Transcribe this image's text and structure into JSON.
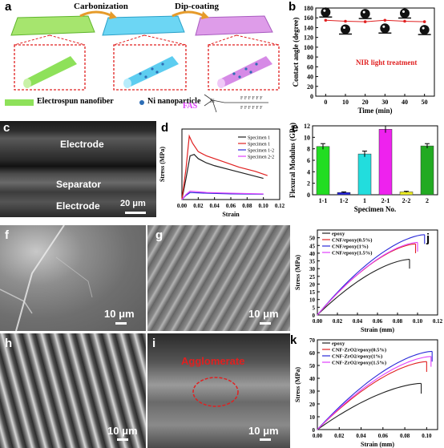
{
  "panels": {
    "a": {
      "label": "a",
      "arrow1": "Carbonization",
      "arrow2": "Dip-coating",
      "legend_fiber": "Electrospun nanofiber",
      "legend_ni": "Ni nanoparticle",
      "fas": "FAS"
    },
    "b": {
      "label": "b",
      "annotation": "NIR light treatment"
    },
    "c": {
      "label": "c",
      "electrode_top": "Electrode",
      "separator": "Separator",
      "electrode_bottom": "Electrode",
      "scale": "20 μm"
    },
    "d": {
      "label": "d"
    },
    "e": {
      "label": "e"
    },
    "f": {
      "label": "f",
      "scale": "10 μm"
    },
    "g": {
      "label": "g",
      "scale": "10 μm"
    },
    "h": {
      "label": "h",
      "scale": "10 μm"
    },
    "i": {
      "label": "i",
      "scale": "10 μm",
      "annotation": "Agglomerate"
    },
    "j": {
      "label": "j"
    },
    "k": {
      "label": "k"
    }
  },
  "colors": {
    "accent_red": "#e02020",
    "fiber_green": "#9be26b",
    "fiber_blue": "#6fd3f2",
    "fiber_purple": "#d98be8",
    "fas_magenta": "#e040fb"
  },
  "chart_data": [
    {
      "id": "b",
      "type": "scatter",
      "x": [
        0,
        10,
        20,
        30,
        40,
        50
      ],
      "y": [
        155,
        153,
        152,
        155,
        153,
        152
      ],
      "xlabel": "Time (min)",
      "ylabel": "Contact angle (degree)",
      "xlim": [
        -5,
        55
      ],
      "ylim": [
        0,
        180
      ],
      "xticks": [
        0,
        10,
        20,
        30,
        40,
        50
      ],
      "yticks": [
        0,
        20,
        40,
        60,
        80,
        100,
        120,
        140,
        160,
        180
      ]
    },
    {
      "id": "d",
      "type": "line",
      "xlabel": "Strain",
      "ylabel": "Stress (MPa)",
      "xlim": [
        0,
        0.12
      ],
      "ylim": [
        0,
        50
      ],
      "xticks": [
        0.0,
        0.02,
        0.04,
        0.06,
        0.08,
        0.1,
        0.12
      ],
      "series": [
        {
          "name": "Specimen 1",
          "color": "#222222",
          "x": [
            0,
            0.005,
            0.01,
            0.015,
            0.02,
            0.03,
            0.04,
            0.06,
            0.08,
            0.1
          ],
          "y": [
            0,
            15,
            31,
            32,
            29,
            26,
            24,
            21,
            18,
            15
          ]
        },
        {
          "name": "Specimen 1",
          "color": "#e02020",
          "x": [
            0,
            0.005,
            0.009,
            0.013,
            0.02,
            0.03,
            0.05,
            0.07,
            0.09,
            0.105
          ],
          "y": [
            0,
            22,
            45,
            40,
            34,
            31,
            27,
            23,
            20,
            17
          ]
        },
        {
          "name": "Specimen 1-2",
          "color": "#2a2ad8",
          "x": [
            0,
            0.005,
            0.01,
            0.03,
            0.06,
            0.1
          ],
          "y": [
            0,
            3,
            5,
            4.5,
            4,
            3.8
          ]
        },
        {
          "name": "Specimen 2-2",
          "color": "#e040fb",
          "x": [
            0,
            0.005,
            0.01,
            0.03,
            0.06,
            0.1
          ],
          "y": [
            0,
            3.5,
            6,
            5,
            4.5,
            4
          ]
        }
      ]
    },
    {
      "id": "e",
      "type": "bar",
      "categories": [
        "1-1",
        "1-2",
        "1",
        "2-1",
        "2-2",
        "2"
      ],
      "values": [
        8.4,
        0.4,
        7.1,
        11.4,
        0.5,
        8.5
      ],
      "errors": [
        0.5,
        0.1,
        0.5,
        0.6,
        0.1,
        0.4
      ],
      "colors": [
        "#22dd22",
        "#2222dd",
        "#22dddd",
        "#ee22ee",
        "#eeee22",
        "#22aa22"
      ],
      "xlabel": "Specimen No.",
      "ylabel": "Flexural Modulus (GPa)",
      "ylim": [
        0,
        12
      ],
      "yticks": [
        0,
        2,
        4,
        6,
        8,
        10,
        12
      ]
    },
    {
      "id": "j",
      "type": "line",
      "xlabel": "Strain (mm)",
      "ylabel": "Stress (MPa)",
      "xlim": [
        0,
        0.12
      ],
      "ylim": [
        0,
        55
      ],
      "xticks": [
        0.0,
        0.02,
        0.04,
        0.06,
        0.08,
        0.1,
        0.12
      ],
      "yticks": [
        0,
        5,
        10,
        15,
        20,
        25,
        30,
        35,
        40,
        45,
        50
      ],
      "series": [
        {
          "name": "epoxy",
          "color": "#222222",
          "end_x": 0.092,
          "end_y": 36
        },
        {
          "name": "CNF/epoxy(0.5%)",
          "color": "#e02020",
          "end_x": 0.098,
          "end_y": 46
        },
        {
          "name": "CNF/epoxy(1%)",
          "color": "#2a2ad8",
          "end_x": 0.107,
          "end_y": 52
        },
        {
          "name": "CNF/epoxy(1.5%)",
          "color": "#e040fb",
          "end_x": 0.1,
          "end_y": 47
        }
      ]
    },
    {
      "id": "k",
      "type": "line",
      "xlabel": "Strain (mm)",
      "ylabel": "Stress (MPa)",
      "xlim": [
        0,
        0.11
      ],
      "ylim": [
        0,
        70
      ],
      "xticks": [
        0.0,
        0.02,
        0.04,
        0.06,
        0.08,
        0.1
      ],
      "yticks": [
        0,
        10,
        20,
        30,
        40,
        50,
        60,
        70
      ],
      "series": [
        {
          "name": "epoxy",
          "color": "#222222",
          "end_x": 0.095,
          "end_y": 36
        },
        {
          "name": "CNF-ZrO2/epoxy(0.5%)",
          "color": "#e02020",
          "end_x": 0.1,
          "end_y": 53
        },
        {
          "name": "CNF-ZrO2/epoxy(1%)",
          "color": "#2a2ad8",
          "end_x": 0.105,
          "end_y": 61
        },
        {
          "name": "CNF-ZrO2/epoxy(1.5%)",
          "color": "#e040fb",
          "end_x": 0.104,
          "end_y": 57
        }
      ]
    }
  ]
}
